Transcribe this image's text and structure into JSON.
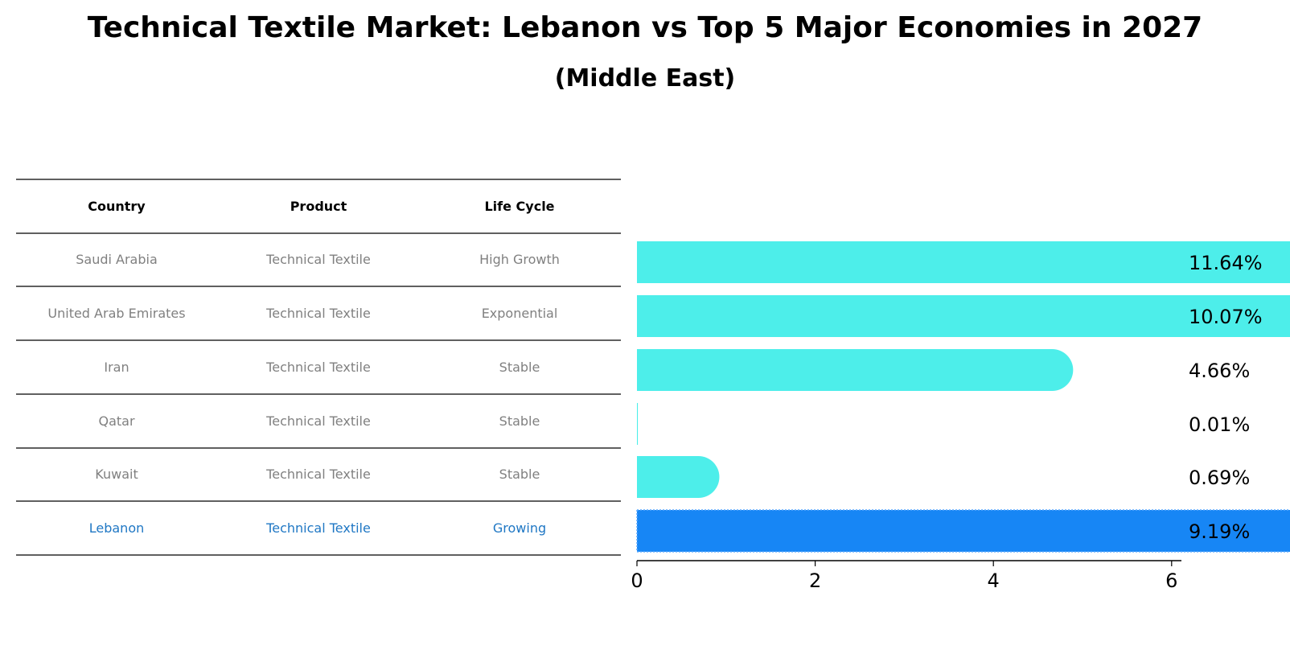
{
  "chart_data": {
    "type": "bar",
    "orientation": "horizontal",
    "title": "Technical Textile Market: Lebanon vs Top 5 Major Economies in 2027",
    "subtitle": "(Middle East)",
    "table": {
      "headers": [
        "Country",
        "Product",
        "Life Cycle"
      ],
      "rows": [
        [
          "Saudi Arabia",
          "Technical Textile",
          "High Growth"
        ],
        [
          "United Arab Emirates",
          "Technical Textile",
          "Exponential"
        ],
        [
          "Iran",
          "Technical Textile",
          "Stable"
        ],
        [
          "Qatar",
          "Technical Textile",
          "Stable"
        ],
        [
          "Kuwait",
          "Technical Textile",
          "Stable"
        ],
        [
          "Lebanon",
          "Technical Textile",
          "Growing"
        ]
      ],
      "highlight_row": 5
    },
    "categories": [
      "Saudi Arabia",
      "United Arab Emirates",
      "Iran",
      "Qatar",
      "Kuwait",
      "Lebanon"
    ],
    "values": [
      11.64,
      10.07,
      4.66,
      0.01,
      0.69,
      9.19
    ],
    "value_labels": [
      "11.64%",
      "10.07%",
      "4.66%",
      "0.01%",
      "0.69%",
      "9.19%"
    ],
    "xlim": [
      0,
      12.2
    ],
    "xticks": [
      0,
      2,
      4,
      6,
      8,
      10,
      12
    ],
    "grid": false,
    "colors": {
      "bar": "#4deeea",
      "highlight": "#1786f5",
      "table_text": "#808080",
      "highlight_text": "#1f77c4",
      "line": "#000000"
    }
  }
}
